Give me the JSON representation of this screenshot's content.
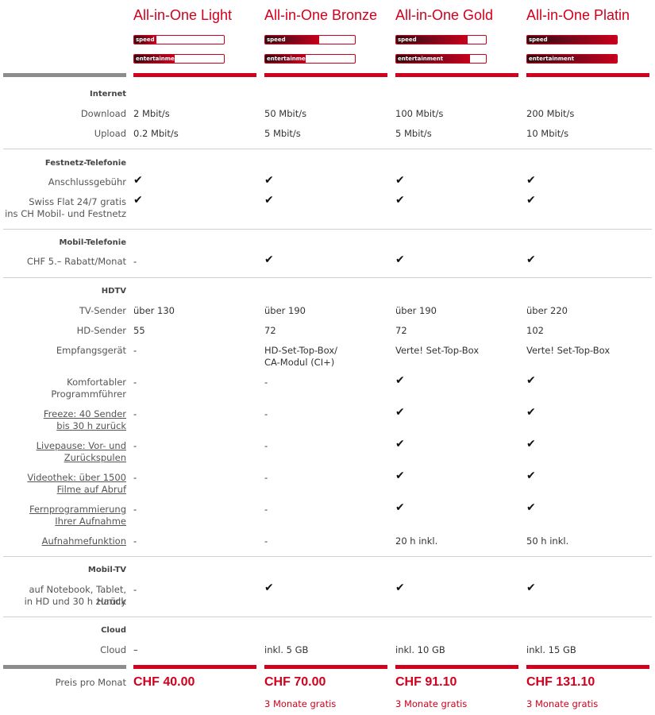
{
  "plans": [
    {
      "name": "All-in-One Light",
      "speed_label": "speed",
      "speed_level": 0.25,
      "ent_label": "entertainment",
      "ent_level": 0.45
    },
    {
      "name": "All-in-One Bronze",
      "speed_label": "speed",
      "speed_level": 0.6,
      "ent_label": "entertainment",
      "ent_level": 0.45
    },
    {
      "name": "All-in-One Gold",
      "speed_label": "speed",
      "speed_level": 0.8,
      "ent_label": "entertainment",
      "ent_level": 0.82
    },
    {
      "name": "All-in-One Platin",
      "speed_label": "speed",
      "speed_level": 1.0,
      "ent_label": "entertainment",
      "ent_level": 1.0
    }
  ],
  "sections": {
    "internet": "Internet",
    "festnetz": "Festnetz-Telefonie",
    "mobil": "Mobil-Telefonie",
    "hdtv": "HDTV",
    "mobiltv": "Mobil-TV",
    "cloud": "Cloud"
  },
  "rows": {
    "download": {
      "label": "Download",
      "values": [
        "2 Mbit/s",
        "50 Mbit/s",
        "100 Mbit/s",
        "200 Mbit/s"
      ]
    },
    "upload": {
      "label": "Upload",
      "values": [
        "0.2 Mbit/s",
        "5 Mbit/s",
        "5 Mbit/s",
        "10 Mbit/s"
      ]
    },
    "anschluss": {
      "label": "Anschlussgebühr",
      "values": [
        "✔",
        "✔",
        "✔",
        "✔"
      ]
    },
    "swissflat": {
      "label1": "Swiss Flat 24/7 gratis",
      "label2": "ins CH Mobil- und Festnetz",
      "values": [
        "✔",
        "✔",
        "✔",
        "✔"
      ]
    },
    "rabatt": {
      "label": "CHF 5.– Rabatt/Monat",
      "values": [
        "-",
        "✔",
        "✔",
        "✔"
      ]
    },
    "tvsender": {
      "label": "TV-Sender",
      "values": [
        "über 130",
        "über 190",
        "über 190",
        "über 220"
      ]
    },
    "hdsender": {
      "label": "HD-Sender",
      "values": [
        "55",
        "72",
        "72",
        "102"
      ]
    },
    "geraet": {
      "label": "Empfangsgerät",
      "values": [
        "-",
        "HD-Set-Top-Box/",
        "Verte! Set-Top-Box",
        "Verte! Set-Top-Box"
      ],
      "extra": "CA-Modul (CI+)"
    },
    "programm": {
      "label1": "Komfortabler",
      "label2": "Programmführer",
      "values": [
        "-",
        "-",
        "✔",
        "✔"
      ]
    },
    "freeze": {
      "label1": "Freeze: 40 Sender",
      "label2": "bis 30 h zurück",
      "values": [
        "-",
        "-",
        "✔",
        "✔"
      ]
    },
    "livepause": {
      "label1": "Livepause: Vor- und",
      "label2": "Zurückspulen",
      "values": [
        "-",
        "-",
        "✔",
        "✔"
      ]
    },
    "videothek": {
      "label1": "Videothek: über 1500",
      "label2": "Filme auf Abruf",
      "values": [
        "-",
        "-",
        "✔",
        "✔"
      ]
    },
    "fernprog": {
      "label1": "Fernprogrammierung",
      "label2": "Ihrer Aufnahme",
      "values": [
        "-",
        "-",
        "✔",
        "✔"
      ]
    },
    "aufnahme": {
      "label": "Aufnahmefunktion",
      "values": [
        "-",
        "-",
        "20 h inkl.",
        "50 h inkl."
      ]
    },
    "notebook": {
      "label1": "auf Notebook, Tablet, Handy",
      "label2": "in HD und 30 h zurück",
      "values": [
        "-",
        "✔",
        "✔",
        "✔"
      ]
    },
    "cloud": {
      "label": "Cloud",
      "values": [
        "–",
        "inkl. 5 GB",
        "inkl. 10 GB",
        "inkl. 15 GB"
      ]
    }
  },
  "price": {
    "label": "Preis pro Monat",
    "values": [
      "CHF 40.00",
      "CHF 70.00",
      "CHF 91.10",
      "CHF 131.10"
    ],
    "promos": [
      "",
      "3 Monate gratis",
      "3 Monate gratis",
      "3 Monate gratis"
    ]
  },
  "colors": {
    "accent": "#d1001d",
    "separator": "#cfcfcf",
    "grey_bar": "#8c8c8c"
  }
}
